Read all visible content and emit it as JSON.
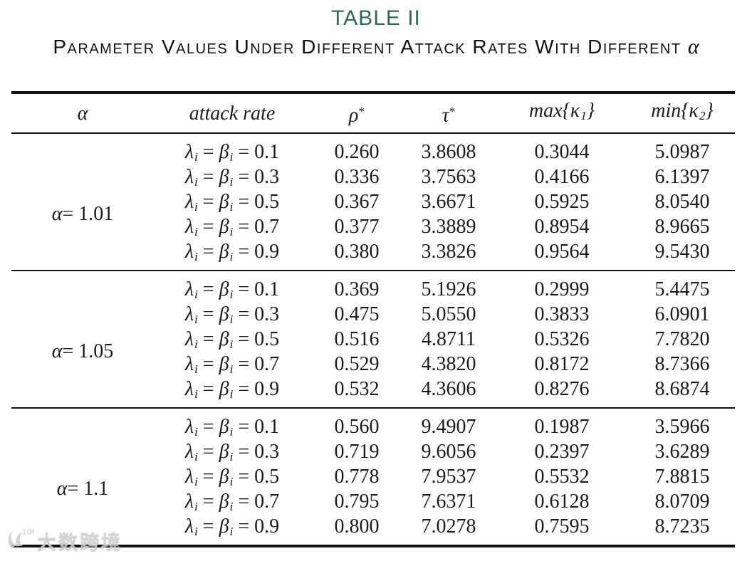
{
  "title": "TABLE II",
  "subtitle": {
    "text": "Parameter Values Under Different Attack Rates With Different",
    "alpha": "α"
  },
  "colors": {
    "title_green": "#2e6a53",
    "text": "#1b1b1b",
    "rule": "#111111"
  },
  "table": {
    "header_names": [
      "alpha",
      "attack-rate",
      "rho-star",
      "tau-star",
      "max-kappa1",
      "min-kappa2"
    ],
    "headers": [
      {
        "segs": [
          {
            "t": "α",
            "i": 1
          }
        ]
      },
      {
        "segs": [
          {
            "t": "attack rate",
            "i": 1
          }
        ]
      },
      {
        "segs": [
          {
            "t": "ρ",
            "i": 1
          },
          {
            "t": "*",
            "sup": 1
          }
        ]
      },
      {
        "segs": [
          {
            "t": "τ",
            "i": 1
          },
          {
            "t": "*",
            "sup": 1
          }
        ]
      },
      {
        "segs": [
          {
            "t": "max{κ",
            "i": 1
          },
          {
            "t": "1",
            "sub": 1
          },
          {
            "t": "}",
            "i": 1
          }
        ]
      },
      {
        "segs": [
          {
            "t": "min{κ",
            "i": 1
          },
          {
            "t": "2",
            "sub": 1
          },
          {
            "t": "}",
            "i": 1
          }
        ]
      }
    ],
    "rate_prefix": [
      {
        "t": "λ",
        "i": 1
      },
      {
        "t": "i",
        "sub": 1
      },
      {
        "t": " = "
      },
      {
        "t": "β",
        "i": 1
      },
      {
        "t": "i",
        "sub": 1
      },
      {
        "t": " = "
      }
    ],
    "blocks": [
      {
        "alpha_segs": [
          {
            "t": "α",
            "i": 1
          },
          {
            "t": " = 1.01"
          }
        ],
        "alpha_label": "α = 1.01",
        "rows": [
          {
            "rate": "0.1",
            "rho": "0.260",
            "tau": "3.8608",
            "kappa1": "0.3044",
            "kappa2": "5.0987"
          },
          {
            "rate": "0.3",
            "rho": "0.336",
            "tau": "3.7563",
            "kappa1": "0.4166",
            "kappa2": "6.1397"
          },
          {
            "rate": "0.5",
            "rho": "0.367",
            "tau": "3.6671",
            "kappa1": "0.5925",
            "kappa2": "8.0540"
          },
          {
            "rate": "0.7",
            "rho": "0.377",
            "tau": "3.3889",
            "kappa1": "0.8954",
            "kappa2": "8.9665"
          },
          {
            "rate": "0.9",
            "rho": "0.380",
            "tau": "3.3826",
            "kappa1": "0.9564",
            "kappa2": "9.5430"
          }
        ]
      },
      {
        "alpha_segs": [
          {
            "t": "α",
            "i": 1
          },
          {
            "t": " = 1.05"
          }
        ],
        "alpha_label": "α = 1.05",
        "rows": [
          {
            "rate": "0.1",
            "rho": "0.369",
            "tau": "5.1926",
            "kappa1": "0.2999",
            "kappa2": "5.4475"
          },
          {
            "rate": "0.3",
            "rho": "0.475",
            "tau": "5.0550",
            "kappa1": "0.3833",
            "kappa2": "6.0901"
          },
          {
            "rate": "0.5",
            "rho": "0.516",
            "tau": "4.8711",
            "kappa1": "0.5326",
            "kappa2": "7.7820"
          },
          {
            "rate": "0.7",
            "rho": "0.529",
            "tau": "4.3820",
            "kappa1": "0.8172",
            "kappa2": "8.7366"
          },
          {
            "rate": "0.9",
            "rho": "0.532",
            "tau": "4.3606",
            "kappa1": "0.8276",
            "kappa2": "8.6874"
          }
        ]
      },
      {
        "alpha_segs": [
          {
            "t": "α",
            "i": 1
          },
          {
            "t": " = 1.1"
          }
        ],
        "alpha_label": "α = 1.1",
        "rows": [
          {
            "rate": "0.1",
            "rho": "0.560",
            "tau": "9.4907",
            "kappa1": "0.1987",
            "kappa2": "3.5966"
          },
          {
            "rate": "0.3",
            "rho": "0.719",
            "tau": "9.6056",
            "kappa1": "0.2397",
            "kappa2": "3.6289"
          },
          {
            "rate": "0.5",
            "rho": "0.778",
            "tau": "7.9537",
            "kappa1": "0.5532",
            "kappa2": "7.8815"
          },
          {
            "rate": "0.7",
            "rho": "0.795",
            "tau": "7.6371",
            "kappa1": "0.6128",
            "kappa2": "8.0709"
          },
          {
            "rate": "0.9",
            "rho": "0.800",
            "tau": "7.0278",
            "kappa1": "0.7595",
            "kappa2": "8.7235"
          }
        ]
      }
    ]
  },
  "watermark": {
    "logo": "100",
    "text": "大数跨境"
  }
}
